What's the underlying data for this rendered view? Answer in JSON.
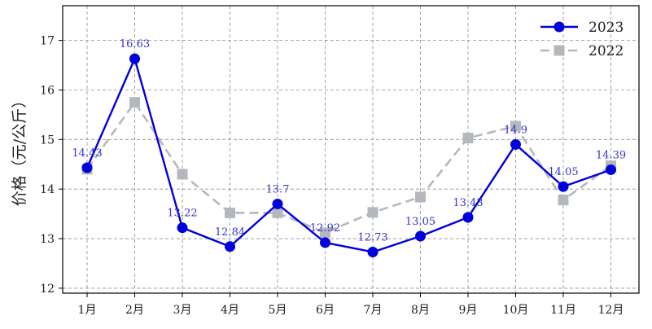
{
  "chart_data": {
    "type": "line",
    "title": "",
    "xlabel": "",
    "ylabel": "价格（元/公斤）",
    "categories": [
      "1月",
      "2月",
      "3月",
      "4月",
      "5月",
      "6月",
      "7月",
      "8月",
      "9月",
      "10月",
      "11月",
      "12月"
    ],
    "ylim": [
      11.9,
      17.7
    ],
    "yticks": [
      12,
      13,
      14,
      15,
      16,
      17
    ],
    "grid": true,
    "legend_position": "top-right",
    "series": [
      {
        "name": "2023",
        "values": [
          14.43,
          16.63,
          13.22,
          12.84,
          13.7,
          12.92,
          12.73,
          13.05,
          13.43,
          14.9,
          14.05,
          14.39
        ],
        "labels": [
          "14.43",
          "16.63",
          "13.22",
          "12.84",
          "13.7",
          "12.92",
          "12.73",
          "13.05",
          "13.43",
          "14.9",
          "14.05",
          "14.39"
        ],
        "color": "#0000dd",
        "line_style": "solid",
        "marker": "circle",
        "label_color": "#3333cc"
      },
      {
        "name": "2022",
        "values": [
          14.4,
          15.75,
          14.3,
          13.52,
          13.52,
          13.12,
          13.53,
          13.84,
          15.03,
          15.27,
          13.78,
          14.47
        ],
        "color": "#b4b8be",
        "line_style": "dashed",
        "marker": "square"
      }
    ]
  }
}
